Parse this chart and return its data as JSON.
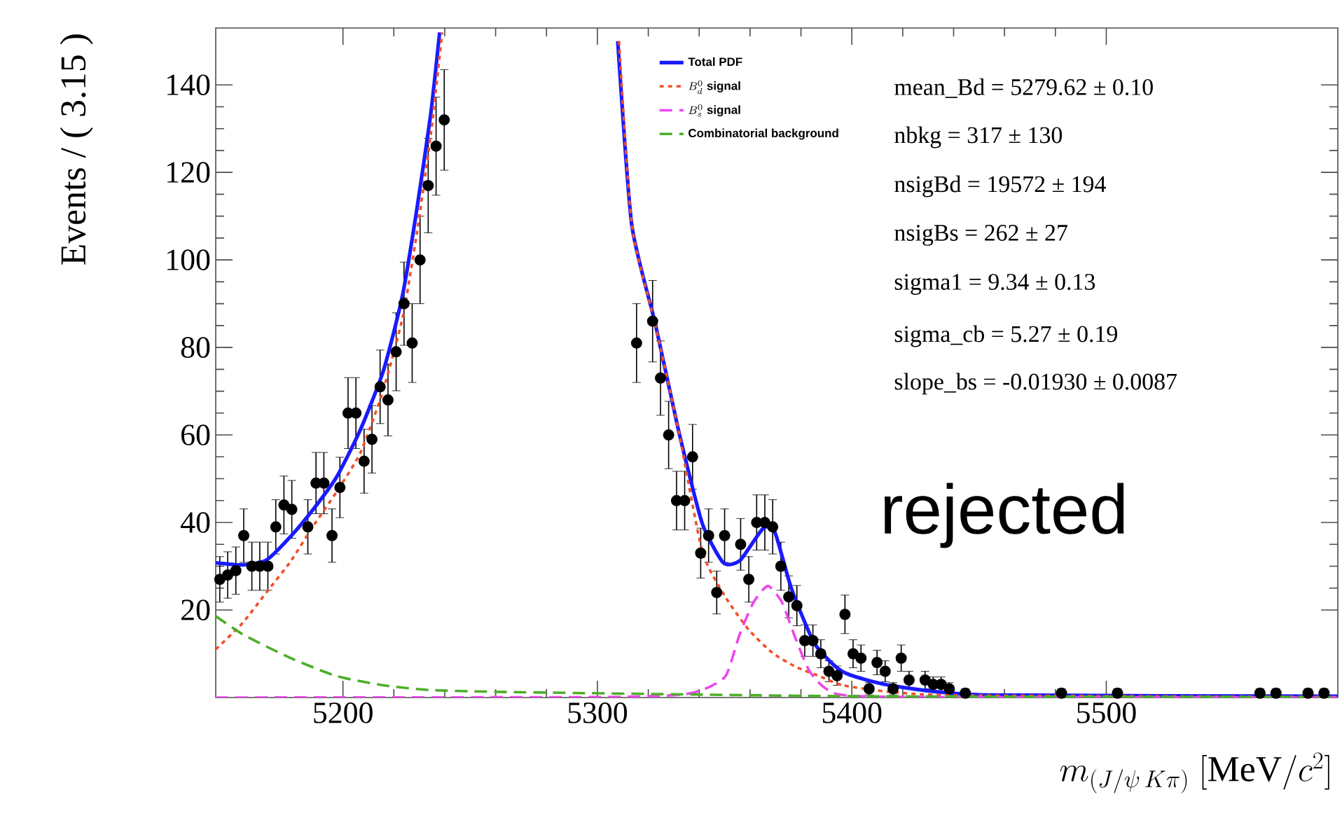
{
  "chart_data": {
    "type": "scatter",
    "ylabel": "Events / ( 3.15 )",
    "xlabel": "m_{(J/\\psi\\,K\\pi)}\\ [\\mathrm{MeV}/c^{2}]",
    "xlim": [
      5150,
      5591
    ],
    "ylim": [
      0,
      153
    ],
    "xticks": [
      5200,
      5300,
      5400,
      5500
    ],
    "yticks": [
      20,
      40,
      60,
      80,
      100,
      120,
      140
    ],
    "legend": "top",
    "annotations": [
      "mean_Bd = 5279.62 ± 0.10",
      "nbkg = 317 ± 130",
      "nsigBd = 19572 ± 194",
      "nsigBs = 262 ± 27",
      "sigma1 = 9.34 ± 0.13",
      "sigma_cb = 5.27 ± 0.19",
      "slope_bs = -0.01930 ± 0.0087",
      "rejected"
    ],
    "series": [
      {
        "color": "#000000",
        "marker": "circle",
        "x": [
          5151.6,
          5154.7,
          5157.9,
          5161.0,
          5164.2,
          5167.3,
          5170.5,
          5173.6,
          5176.8,
          5179.9,
          5186.2,
          5189.4,
          5192.5,
          5195.7,
          5198.8,
          5202.0,
          5205.1,
          5208.3,
          5211.4,
          5214.6,
          5217.7,
          5220.9,
          5224.0,
          5227.2,
          5230.3,
          5233.5,
          5236.6,
          5239.8,
          5315.4,
          5321.7,
          5324.8,
          5328.0,
          5331.1,
          5334.3,
          5337.4,
          5340.6,
          5343.7,
          5346.9,
          5350.0,
          5356.3,
          5359.5,
          5362.6,
          5365.8,
          5368.9,
          5372.1,
          5375.2,
          5378.4,
          5381.5,
          5384.7,
          5387.8,
          5391.0,
          5394.2,
          5397.3,
          5400.5,
          5403.6,
          5406.8,
          5409.9,
          5413.1,
          5416.2,
          5419.4,
          5422.5,
          5428.8,
          5432.0,
          5435.1,
          5438.3,
          5444.6,
          5482.4,
          5504.4,
          5560.4,
          5566.7,
          5579.3,
          5585.6
        ],
        "values": [
          27,
          28,
          29,
          37,
          30,
          30,
          30,
          39,
          44,
          43,
          39,
          49,
          49,
          37,
          48,
          65,
          65,
          54,
          59,
          71,
          68,
          79,
          90,
          81,
          100,
          117,
          126,
          132,
          81,
          86,
          73,
          60,
          45,
          45,
          55,
          33,
          37,
          24,
          37,
          35,
          27,
          40,
          40,
          39,
          30,
          23,
          21,
          13,
          13,
          10,
          6,
          5,
          19,
          10,
          9,
          2,
          8,
          6,
          2,
          9,
          4,
          4,
          3,
          3,
          2,
          1,
          1,
          1,
          1,
          1,
          1,
          1
        ],
        "errors": [
          5.2,
          5.3,
          5.4,
          6.1,
          5.5,
          5.5,
          5.5,
          6.2,
          6.6,
          6.6,
          6.2,
          7,
          7,
          6.1,
          6.9,
          8.1,
          8.1,
          7.3,
          7.7,
          8.4,
          8.2,
          8.9,
          9.5,
          9,
          10,
          10.8,
          11.2,
          11.5,
          9,
          9.3,
          8.5,
          7.7,
          6.7,
          6.7,
          7.4,
          5.7,
          6.1,
          4.9,
          6.1,
          5.9,
          5.2,
          6.3,
          6.3,
          6.2,
          5.5,
          4.8,
          4.6,
          3.6,
          3.6,
          3.2,
          2.4,
          2.2,
          4.4,
          3.2,
          3,
          1.4,
          2.8,
          2.4,
          1.4,
          3,
          2,
          2,
          1.7,
          1.7,
          1.4,
          1,
          1,
          1,
          1,
          1,
          1,
          1
        ]
      },
      {
        "type": "line",
        "name": "\\textsf{\\textbf{Total PDF}}",
        "color": "#1a1aff",
        "line_style": "solid",
        "marker": "none",
        "x": [
          5150,
          5160.7,
          5169.9,
          5179.1,
          5188.3,
          5197.5,
          5206.7,
          5215.9,
          5223.3,
          5228.8,
          5234.4,
          5238,
          5280,
          5308,
          5313.5,
          5322.8,
          5331.9,
          5341.2,
          5349.5,
          5356,
          5365.2,
          5369.8,
          5376.2,
          5385.4,
          5396.4,
          5414.8,
          5451.6,
          5591
        ],
        "values": [
          30.8,
          30.3,
          31.4,
          36.6,
          43,
          50.4,
          61,
          74.7,
          91.6,
          110.7,
          132.9,
          152,
          null,
          150,
          108,
          85.3,
          61,
          39.8,
          30.8,
          31.3,
          38.7,
          37.7,
          25,
          12.3,
          5.9,
          2.8,
          0.6,
          0.3
        ]
      },
      {
        "type": "line",
        "name": "B^{0}_{d}\\ \\textsf{\\textbf{signal}}",
        "color": "#f0502a",
        "line_style": "dotted",
        "marker": "none",
        "x": [
          5150,
          5160.5,
          5169.9,
          5179.3,
          5188.1,
          5197.5,
          5206.9,
          5215.7,
          5223.5,
          5229,
          5234.6,
          5239,
          5280,
          5308.5,
          5313.5,
          5322.8,
          5331.9,
          5341.2,
          5350.4,
          5359.6,
          5368.8,
          5378,
          5387.2,
          5396.4,
          5414.8,
          5442.4,
          5591
        ],
        "values": [
          11,
          17,
          24,
          31,
          39,
          47,
          56,
          70,
          87,
          106,
          129,
          152,
          null,
          150,
          108,
          85,
          61,
          33.4,
          22.9,
          15.4,
          10.2,
          7,
          4.9,
          2.8,
          1.3,
          0.5,
          0.1
        ]
      },
      {
        "type": "line",
        "name": "B^{0}_{s}\\ \\textsf{\\textbf{signal}}",
        "color": "#ee44ee",
        "line_style": "dashed",
        "marker": "none",
        "x": [
          5150,
          5300,
          5331.9,
          5341.2,
          5350.4,
          5355.9,
          5361.4,
          5367,
          5372.5,
          5378,
          5383.5,
          5390.9,
          5410,
          5591
        ],
        "values": [
          0,
          0.1,
          0.6,
          1.7,
          4.9,
          14.4,
          21.8,
          25.5,
          21.8,
          13.3,
          5.9,
          1.7,
          0.2,
          0
        ]
      },
      {
        "type": "line",
        "name": "\\textsf{\\textbf{Combinatorial background}}",
        "color": "#4caf28",
        "line_style": "dashed",
        "marker": "none",
        "x": [
          5150,
          5160.7,
          5179.1,
          5197.5,
          5215.9,
          5234.4,
          5271.2,
          5400,
          5591
        ],
        "values": [
          18.6,
          14.4,
          9.1,
          4.9,
          2.8,
          1.7,
          1.2,
          0.3,
          0.1
        ]
      }
    ]
  }
}
